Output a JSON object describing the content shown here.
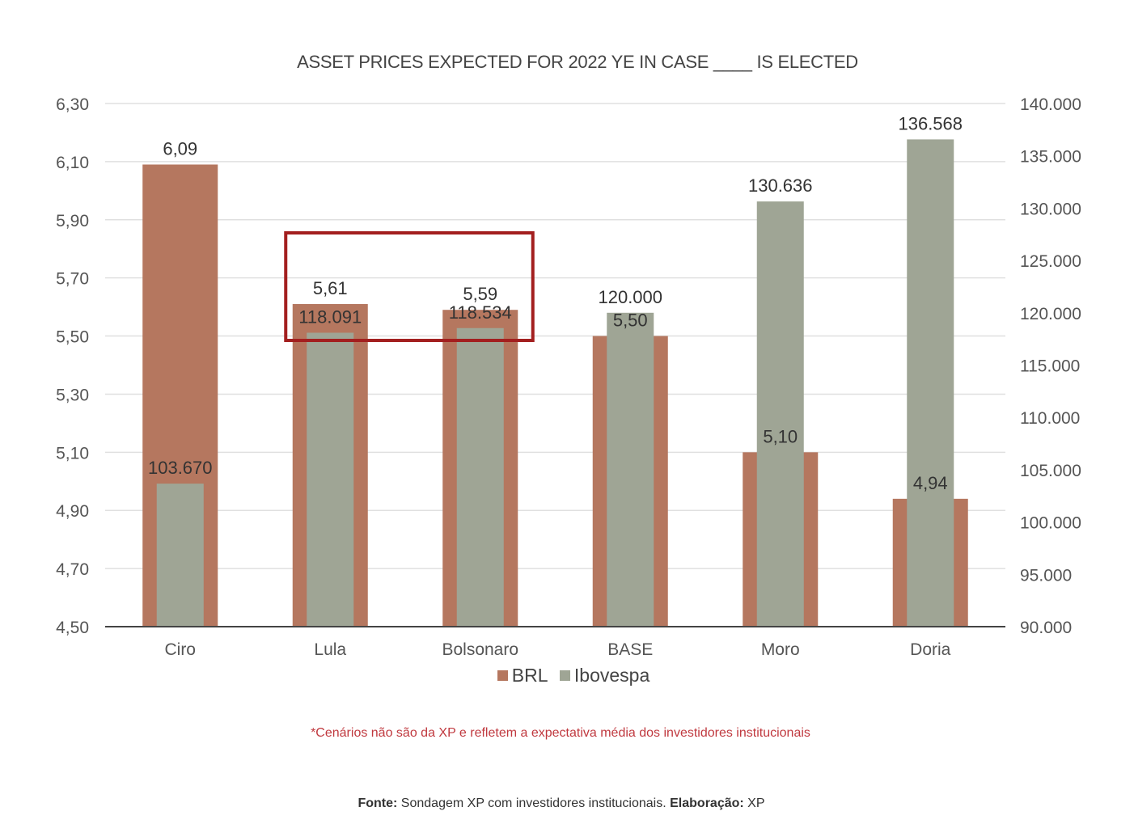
{
  "chart_data": {
    "type": "bar",
    "title": "ASSET PRICES  EXPECTED FOR 2022 YE IN CASE ____ IS ELECTED",
    "categories": [
      "Ciro",
      "Lula",
      "Bolsonaro",
      "BASE",
      "Moro",
      "Doria"
    ],
    "series": [
      {
        "name": "BRL",
        "axis": "left",
        "color": "#b5775f",
        "values": [
          6.09,
          5.61,
          5.59,
          5.5,
          5.1,
          4.94
        ],
        "labels": [
          "6,09",
          "5,61",
          "5,59",
          "5,50",
          "5,10",
          "4,94"
        ]
      },
      {
        "name": "Ibovespa",
        "axis": "right",
        "color": "#9fa595",
        "values": [
          103670,
          118091,
          118534,
          120000,
          130636,
          136568
        ],
        "labels": [
          "103.670",
          "118.091",
          "118.534",
          "120.000",
          "130.636",
          "136.568"
        ]
      }
    ],
    "y_left": {
      "range": [
        4.5,
        6.3
      ],
      "ticks": [
        4.5,
        4.7,
        4.9,
        5.1,
        5.3,
        5.5,
        5.7,
        5.9,
        6.1,
        6.3
      ],
      "tick_labels": [
        "4,50",
        "4,70",
        "4,90",
        "5,10",
        "5,30",
        "5,50",
        "5,70",
        "5,90",
        "6,10",
        "6,30"
      ]
    },
    "y_right": {
      "range": [
        90000,
        140000
      ],
      "ticks": [
        90000,
        95000,
        100000,
        105000,
        110000,
        115000,
        120000,
        125000,
        130000,
        135000,
        140000
      ],
      "tick_labels": [
        "90.000",
        "95.000",
        "100.000",
        "105.000",
        "110.000",
        "115.000",
        "120.000",
        "125.000",
        "130.000",
        "135.000",
        "140.000"
      ]
    },
    "grid": true,
    "legend_position": "bottom",
    "highlight": {
      "categories": [
        "Lula",
        "Bolsonaro"
      ],
      "color": "#a31f1f"
    }
  },
  "legend": {
    "brl": "BRL",
    "ibovespa": "Ibovespa"
  },
  "footnote": "*Cenários não são da XP e refletem a expectativa média dos investidores institucionais",
  "source": {
    "label": "Fonte:",
    "text": " Sondagem XP com investidores institucionais. ",
    "credit_label": "Elaboração:",
    "credit": " XP"
  }
}
